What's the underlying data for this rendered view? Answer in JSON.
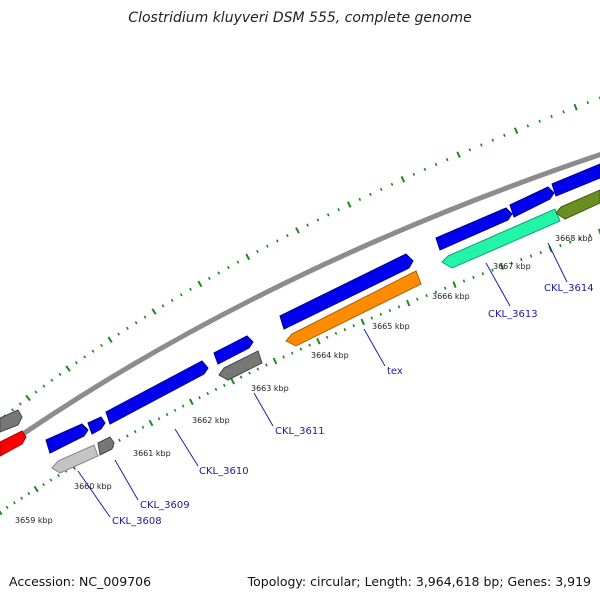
{
  "title": "Clostridium kluyveri DSM 555, complete genome",
  "accession": "Accession: NC_009706",
  "summary": "Topology: circular; Length: 3,964,618 bp; Genes: 3,919",
  "colors": {
    "backbone": "#8c8c8c",
    "gene_forward": "#0000ee",
    "gene_gray": "#777777",
    "gene_lightgray": "#c4c4c4",
    "gene_orange": "#ff8c00",
    "gene_mint": "#22f5aa",
    "gene_olive": "#6b8e23",
    "gene_red": "#ff0000",
    "ticks": "#1a8a1a",
    "label_text": "#1a1aa0"
  },
  "scale_ticks": [
    {
      "label": "3659 kbp",
      "kbp": 3659
    },
    {
      "label": "3660 kbp",
      "kbp": 3660
    },
    {
      "label": "3661 kbp",
      "kbp": 3661
    },
    {
      "label": "3662 kbp",
      "kbp": 3662
    },
    {
      "label": "3663 kbp",
      "kbp": 3663
    },
    {
      "label": "3664 kbp",
      "kbp": 3664
    },
    {
      "label": "3665 kbp",
      "kbp": 3665
    },
    {
      "label": "3666 kbp",
      "kbp": 3666
    },
    {
      "label": "3667 kbp",
      "kbp": 3667
    },
    {
      "label": "3668 kbp",
      "kbp": 3668
    }
  ],
  "gene_labels": [
    {
      "text": "CKL_3608"
    },
    {
      "text": "CKL_3609"
    },
    {
      "text": "CKL_3610"
    },
    {
      "text": "CKL_3611"
    },
    {
      "text": "tex"
    },
    {
      "text": "CKL_3613"
    },
    {
      "text": "CKL_3614"
    }
  ]
}
